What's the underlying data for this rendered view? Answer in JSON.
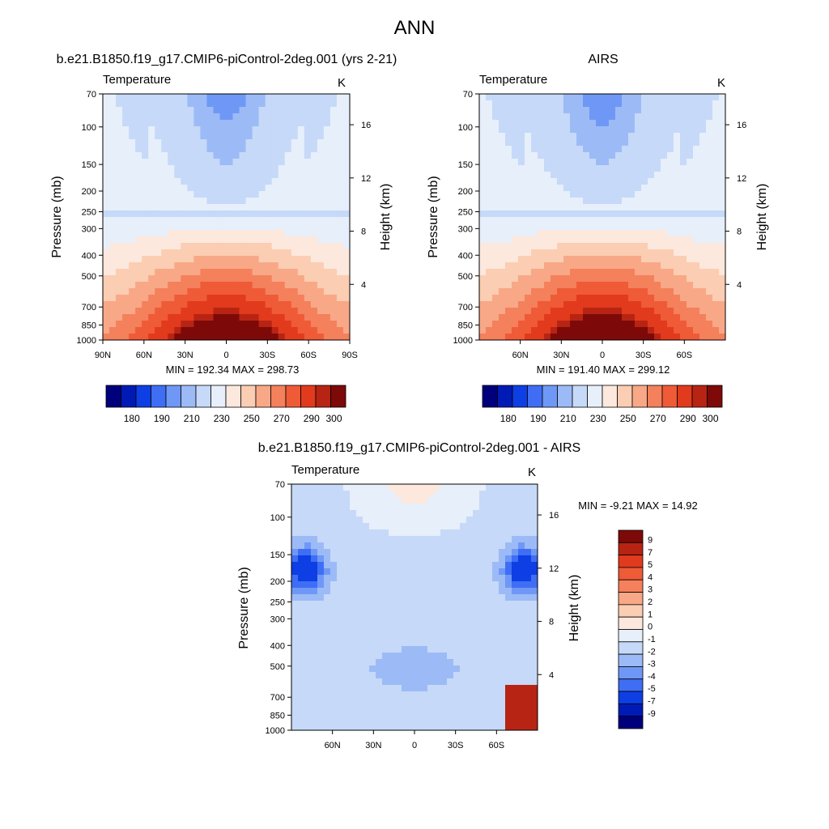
{
  "figure": {
    "title": "ANN"
  },
  "colors": {
    "abs_scale": [
      "#00007c",
      "#001bb5",
      "#0d3fe4",
      "#3f6ef5",
      "#6f98f6",
      "#9cbbf6",
      "#c6d9f8",
      "#e7effb",
      "#fce8dc",
      "#fbcdb2",
      "#f8a886",
      "#f4805c",
      "#ef5a37",
      "#e23a1d",
      "#b82413",
      "#7d0a08"
    ],
    "diff_scale": [
      "#00007c",
      "#001bb5",
      "#0d3fe4",
      "#3f6ef5",
      "#6f98f6",
      "#9cbbf6",
      "#c6d9f8",
      "#e7effb",
      "#fce8dc",
      "#fbcdb2",
      "#f8a886",
      "#f4805c",
      "#ef5a37",
      "#e23a1d",
      "#b82413",
      "#7d0a08"
    ]
  },
  "chart_data": [
    {
      "type": "heatmap",
      "panel": "model",
      "title": "b.e21.B1850.f19_g17.CMIP6-piControl-2deg.001 (yrs 2-21)",
      "left_label": "Temperature",
      "right_label": "K",
      "ylabel": "Pressure (mb)",
      "ylabel_right": "Height (km)",
      "x_ticks": [
        "90N",
        "60N",
        "30N",
        "0",
        "30S",
        "60S",
        "90S"
      ],
      "x_tick_values": [
        90,
        60,
        30,
        0,
        -30,
        -60,
        -90
      ],
      "xlim": [
        90,
        -90
      ],
      "y_ticks": [
        "70",
        "100",
        "150",
        "200",
        "250",
        "300",
        "400",
        "500",
        "700",
        "850",
        "1000"
      ],
      "y_tick_values": [
        70,
        100,
        150,
        200,
        250,
        300,
        400,
        500,
        700,
        850,
        1000
      ],
      "ylim": [
        1000,
        70
      ],
      "log_y": true,
      "right_ticks": [
        "4",
        "8",
        "12",
        "16"
      ],
      "right_tick_values": [
        4,
        8,
        12,
        16
      ],
      "stats": "MIN = 192.34  MAX = 298.73",
      "min": 192.34,
      "max": 298.73,
      "colorbar_labels": [
        "180",
        "190",
        "210",
        "230",
        "250",
        "270",
        "290",
        "300"
      ],
      "colorbar_levels": [
        175,
        180,
        185,
        190,
        200,
        210,
        220,
        230,
        240,
        250,
        260,
        270,
        280,
        290,
        295,
        300
      ],
      "tropopause_min": 193,
      "surface_max": 298
    },
    {
      "type": "heatmap",
      "panel": "obs",
      "title": "AIRS",
      "left_label": "Temperature",
      "right_label": "K",
      "ylabel": "Pressure (mb)",
      "ylabel_right": "Height (km)",
      "x_ticks": [
        "60N",
        "30N",
        "0",
        "30S",
        "60S"
      ],
      "x_tick_values": [
        60,
        30,
        0,
        -30,
        -60
      ],
      "xlim": [
        90,
        -90
      ],
      "y_ticks": [
        "70",
        "100",
        "150",
        "200",
        "250",
        "300",
        "400",
        "500",
        "700",
        "850",
        "1000"
      ],
      "y_tick_values": [
        70,
        100,
        150,
        200,
        250,
        300,
        400,
        500,
        700,
        850,
        1000
      ],
      "ylim": [
        1000,
        70
      ],
      "log_y": true,
      "right_ticks": [
        "4",
        "8",
        "12",
        "16"
      ],
      "right_tick_values": [
        4,
        8,
        12,
        16
      ],
      "stats": "MIN = 191.40  MAX = 299.12",
      "min": 191.4,
      "max": 299.12,
      "colorbar_labels": [
        "180",
        "190",
        "210",
        "230",
        "250",
        "270",
        "290",
        "300"
      ],
      "colorbar_levels": [
        175,
        180,
        185,
        190,
        200,
        210,
        220,
        230,
        240,
        250,
        260,
        270,
        280,
        290,
        295,
        300
      ],
      "tropopause_min": 192,
      "surface_max": 299
    },
    {
      "type": "heatmap",
      "panel": "diff",
      "title": "b.e21.B1850.f19_g17.CMIP6-piControl-2deg.001 - AIRS",
      "left_label": "Temperature",
      "right_label": "K",
      "ylabel": "Pressure (mb)",
      "ylabel_right": "Height (km)",
      "x_ticks": [
        "60N",
        "30N",
        "0",
        "30S",
        "60S"
      ],
      "x_tick_values": [
        60,
        30,
        0,
        -30,
        -60
      ],
      "xlim": [
        90,
        -90
      ],
      "y_ticks": [
        "70",
        "100",
        "150",
        "200",
        "250",
        "300",
        "400",
        "500",
        "700",
        "850",
        "1000"
      ],
      "y_tick_values": [
        70,
        100,
        150,
        200,
        250,
        300,
        400,
        500,
        700,
        850,
        1000
      ],
      "ylim": [
        1000,
        70
      ],
      "log_y": true,
      "right_ticks": [
        "4",
        "8",
        "12",
        "16"
      ],
      "right_tick_values": [
        4,
        8,
        12,
        16
      ],
      "stats": "MIN =  -9.21  MAX =  14.92",
      "min": -9.21,
      "max": 14.92,
      "colorbar_labels": [
        "9",
        "7",
        "5",
        "4",
        "3",
        "2",
        "1",
        "0",
        "-1",
        "-2",
        "-3",
        "-4",
        "-5",
        "-7",
        "-9"
      ],
      "colorbar_levels": [
        -9,
        -7,
        -5,
        -4,
        -3,
        -2,
        -1,
        0,
        1,
        2,
        3,
        4,
        5,
        7,
        9
      ]
    }
  ]
}
